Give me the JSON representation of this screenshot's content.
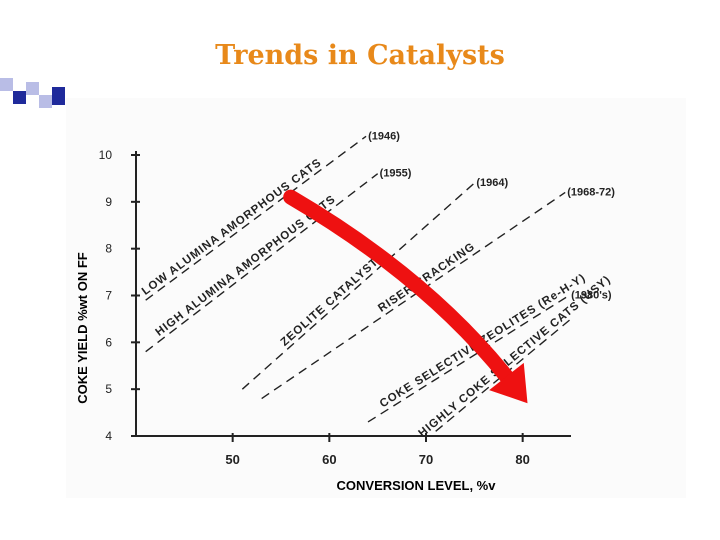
{
  "slide": {
    "title": "Trends in Catalysts"
  },
  "colors": {
    "title": "#e8891a",
    "deco_dark": "#1f2a9b",
    "deco_light": "#b9bde6",
    "line": "#222222",
    "arrow": "#ee1111"
  },
  "chart_data": {
    "type": "line",
    "xlabel": "CONVERSION LEVEL, %v",
    "ylabel": "COKE YIELD %wt ON FF",
    "xlim": [
      40,
      85
    ],
    "ylim": [
      4,
      10
    ],
    "x_ticks": [
      50,
      60,
      70,
      80
    ],
    "y_ticks": [
      4,
      5,
      6,
      7,
      8,
      9,
      10
    ],
    "grid": false,
    "series": [
      {
        "name": "LOW ALUMINA AMORPHOUS CATS",
        "year": "(1946)",
        "points": [
          [
            41,
            6.9
          ],
          [
            63.8,
            10.4
          ]
        ]
      },
      {
        "name": "HIGH ALUMINA AMORPHOUS CATS",
        "year": "(1955)",
        "points": [
          [
            41,
            5.8
          ],
          [
            65,
            9.6
          ]
        ]
      },
      {
        "name": "ZEOLITE CATALYSTS",
        "year": "(1964)",
        "points": [
          [
            51,
            5.0
          ],
          [
            75,
            9.4
          ]
        ]
      },
      {
        "name": "RISER CRACKING",
        "year": "(1968-72)",
        "points": [
          [
            53,
            4.8
          ],
          [
            84.4,
            9.2
          ]
        ]
      },
      {
        "name": "COKE SELECTIVE ZEOLITES (Re-H-Y)",
        "year": "(1980's)",
        "points": [
          [
            64,
            4.3
          ],
          [
            84.8,
            7.0
          ]
        ]
      },
      {
        "name": "HIGHLY COKE SELECTIVE CATS (USY)",
        "year": "",
        "points": [
          [
            71,
            4.1
          ],
          [
            85,
            6.5
          ]
        ]
      }
    ],
    "trend_arrow": {
      "from": [
        56,
        9.1
      ],
      "to": [
        80.5,
        4.7
      ]
    }
  }
}
